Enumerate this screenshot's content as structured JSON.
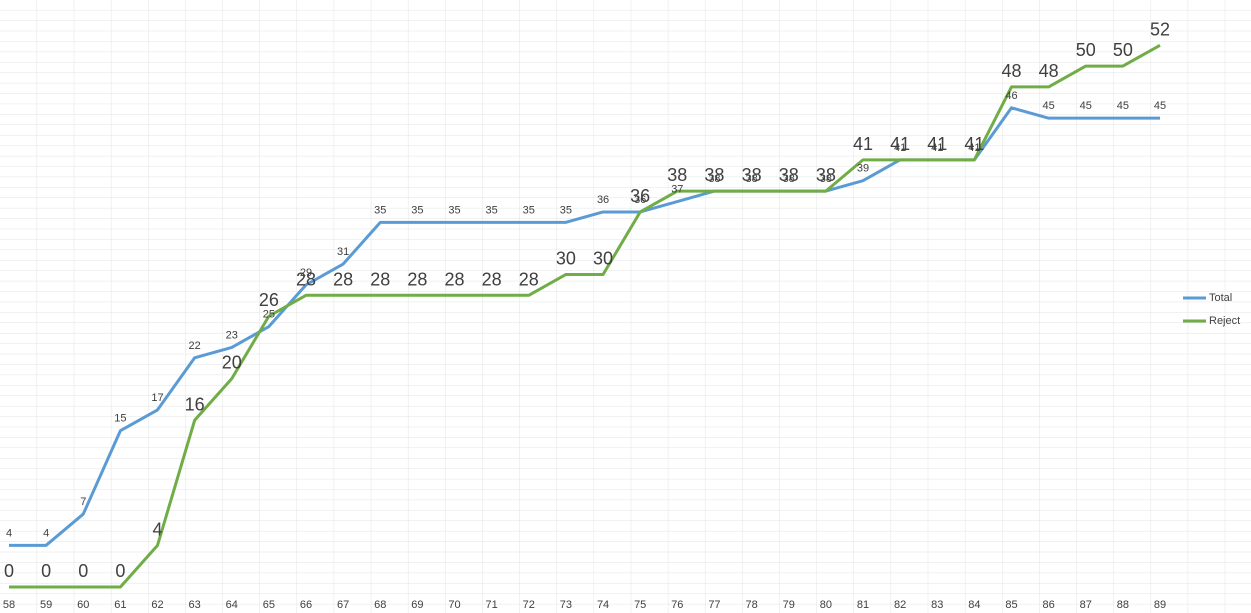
{
  "chart_data": {
    "type": "line",
    "categories": [
      "58",
      "59",
      "60",
      "61",
      "62",
      "63",
      "64",
      "65",
      "66",
      "67",
      "68",
      "69",
      "70",
      "71",
      "72",
      "73",
      "74",
      "75",
      "76",
      "77",
      "78",
      "79",
      "80",
      "81",
      "82",
      "83",
      "84",
      "85",
      "86",
      "87",
      "88",
      "89"
    ],
    "series": [
      {
        "name": "Total",
        "color": "#5b9bd5",
        "values": [
          4,
          4,
          7,
          15,
          17,
          22,
          23,
          25,
          29,
          31,
          35,
          35,
          35,
          35,
          35,
          35,
          36,
          36,
          37,
          38,
          38,
          38,
          38,
          39,
          41,
          41,
          41,
          46,
          45,
          45,
          45,
          45
        ]
      },
      {
        "name": "Reject",
        "color": "#70ad47",
        "values": [
          0,
          0,
          0,
          0,
          4,
          16,
          20,
          26,
          28,
          28,
          28,
          28,
          28,
          28,
          28,
          30,
          30,
          36,
          38,
          38,
          38,
          38,
          38,
          41,
          41,
          41,
          41,
          48,
          48,
          50,
          50,
          52
        ]
      }
    ],
    "ylim": [
      0,
      55
    ],
    "legend": "right"
  }
}
